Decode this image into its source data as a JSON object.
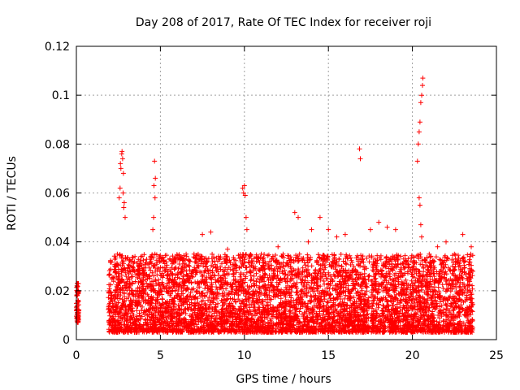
{
  "chart_data": {
    "type": "scatter",
    "title": "Day 208 of 2017, Rate Of TEC Index for receiver roji",
    "xlabel": "GPS time / hours",
    "ylabel": "ROTI / TECUs",
    "xlim": [
      0,
      25
    ],
    "ylim": [
      0,
      0.12
    ],
    "xticks": [
      "0",
      "5",
      "10",
      "15",
      "20",
      "25"
    ],
    "yticks": [
      "0",
      "0.02",
      "0.04",
      "0.06",
      "0.08",
      "0.1",
      "0.12"
    ],
    "grid": true,
    "marker": "+",
    "color": "#ff0000",
    "series": [
      {
        "x": [
          0.0,
          0.02,
          0.04,
          0.06,
          0.08,
          0.1,
          0.12,
          0.14,
          0.05,
          0.07,
          0.09,
          0.11,
          2.55,
          2.6,
          2.65,
          2.7,
          2.75,
          2.8,
          2.85,
          2.9,
          2.62,
          2.72,
          2.78,
          2.82,
          4.55,
          4.6,
          4.65,
          4.7,
          4.62,
          4.68,
          7.0,
          7.5,
          8.0,
          9.0,
          9.9,
          9.95,
          10.0,
          10.05,
          10.1,
          10.15,
          11.0,
          12.0,
          13.0,
          13.2,
          13.8,
          14.0,
          14.5,
          15.0,
          15.5,
          16.0,
          16.85,
          16.9,
          17.5,
          18.0,
          18.5,
          19.0,
          20.3,
          20.35,
          20.4,
          20.45,
          20.5,
          20.55,
          20.6,
          20.62,
          20.4,
          20.45,
          20.5,
          20.55,
          21.0,
          21.5,
          22.0,
          22.5,
          23.0,
          23.5
        ],
        "y": [
          0.012,
          0.018,
          0.022,
          0.014,
          0.009,
          0.016,
          0.02,
          0.011,
          0.023,
          0.015,
          0.019,
          0.008,
          0.058,
          0.062,
          0.07,
          0.076,
          0.074,
          0.068,
          0.056,
          0.05,
          0.072,
          0.077,
          0.06,
          0.054,
          0.045,
          0.05,
          0.073,
          0.066,
          0.063,
          0.058,
          0.035,
          0.043,
          0.044,
          0.037,
          0.062,
          0.06,
          0.063,
          0.059,
          0.05,
          0.045,
          0.035,
          0.038,
          0.052,
          0.05,
          0.04,
          0.045,
          0.05,
          0.045,
          0.042,
          0.043,
          0.078,
          0.074,
          0.045,
          0.048,
          0.046,
          0.045,
          0.073,
          0.08,
          0.085,
          0.089,
          0.097,
          0.1,
          0.104,
          0.107,
          0.058,
          0.055,
          0.047,
          0.042,
          0.035,
          0.038,
          0.04,
          0.035,
          0.043,
          0.038
        ]
      }
    ],
    "dense_segments": [
      {
        "x_start": 0.0,
        "x_end": 0.15,
        "y_min": 0.007,
        "y_max": 0.023
      },
      {
        "x_start": 1.9,
        "x_end": 17.45,
        "y_min": 0.003,
        "y_max": 0.035
      },
      {
        "x_start": 17.55,
        "x_end": 23.6,
        "y_min": 0.003,
        "y_max": 0.035
      }
    ]
  }
}
